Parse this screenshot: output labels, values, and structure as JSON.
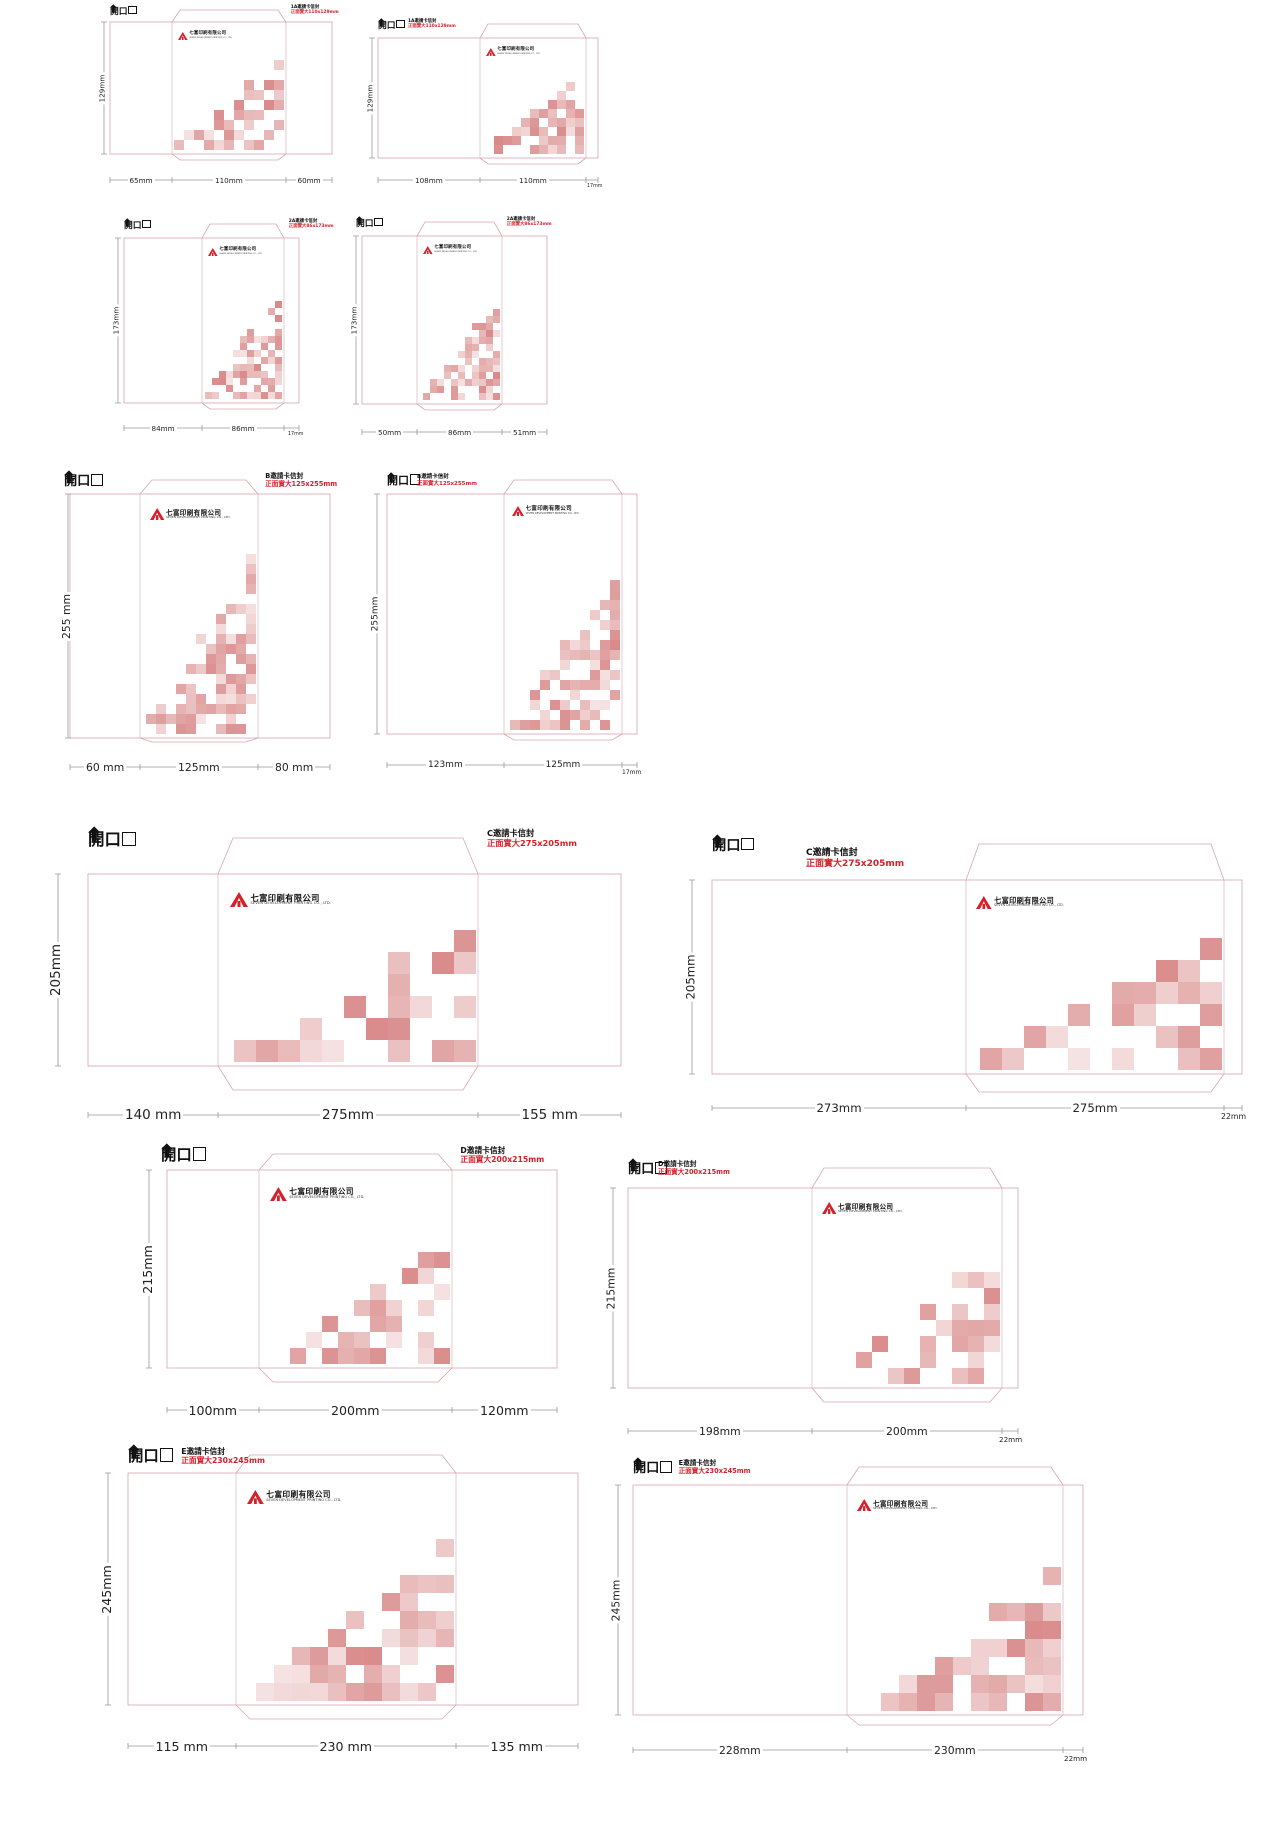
{
  "colors": {
    "accent_red": "#d6202b",
    "pattern": "#d98a8a",
    "outline": "#d7a6b0",
    "dim_line": "#999999"
  },
  "open_text": "開口",
  "logo": {
    "cn": "七富印刷有限公司",
    "en": "SEVEN DEVELOPMENT PRINTING CO., LTD."
  },
  "envelopes": [
    {
      "label_l1": "1A邀請卡信封",
      "label_l2": "正面實大110x129mm",
      "height_dim": "129mm",
      "widths": [
        "65mm",
        "110mm",
        "60mm"
      ]
    },
    {
      "label_l1": "1A邀請卡信封",
      "label_l2": "正面實大110x129mm",
      "height_dim": "129mm",
      "widths": [
        "108mm",
        "110mm",
        "17mm"
      ]
    },
    {
      "label_l1": "2A邀請卡信封",
      "label_l2": "正面實大86x173mm",
      "height_dim": "173mm",
      "widths": [
        "84mm",
        "86mm",
        "17mm"
      ]
    },
    {
      "label_l1": "2A邀請卡信封",
      "label_l2": "正面實大86x173mm",
      "height_dim": "173mm",
      "widths": [
        "50mm",
        "86mm",
        "51mm"
      ]
    },
    {
      "label_l1": "B邀請卡信封",
      "label_l2": "正面實大125x255mm",
      "height_dim": "255 mm",
      "widths": [
        "60 mm",
        "125mm",
        "80 mm"
      ]
    },
    {
      "label_l1": "B邀請卡信封",
      "label_l2": "正面實大125x255mm",
      "height_dim": "255mm",
      "widths": [
        "123mm",
        "125mm",
        "17mm"
      ]
    },
    {
      "label_l1": "C邀請卡信封",
      "label_l2": "正面實大275x205mm",
      "height_dim": "205mm",
      "widths": [
        "140 mm",
        "275mm",
        "155 mm"
      ]
    },
    {
      "label_l1": "C邀請卡信封",
      "label_l2": "正面實大275x205mm",
      "height_dim": "205mm",
      "widths": [
        "273mm",
        "275mm",
        "22mm"
      ]
    },
    {
      "label_l1": "D邀請卡信封",
      "label_l2": "正面實大200x215mm",
      "height_dim": "215mm",
      "widths": [
        "100mm",
        "200mm",
        "120mm"
      ]
    },
    {
      "label_l1": "D邀請卡信封",
      "label_l2": "正面實大200x215mm",
      "height_dim": "215mm",
      "widths": [
        "198mm",
        "200mm",
        "22mm"
      ]
    },
    {
      "label_l1": "E邀請卡信封",
      "label_l2": "正面實大230x245mm",
      "height_dim": "245mm",
      "widths": [
        "115 mm",
        "230 mm",
        "135 mm"
      ]
    },
    {
      "label_l1": "E邀請卡信封",
      "label_l2": "正面實大230x245mm",
      "height_dim": "245mm",
      "widths": [
        "228mm",
        "230mm",
        "22mm"
      ]
    }
  ]
}
